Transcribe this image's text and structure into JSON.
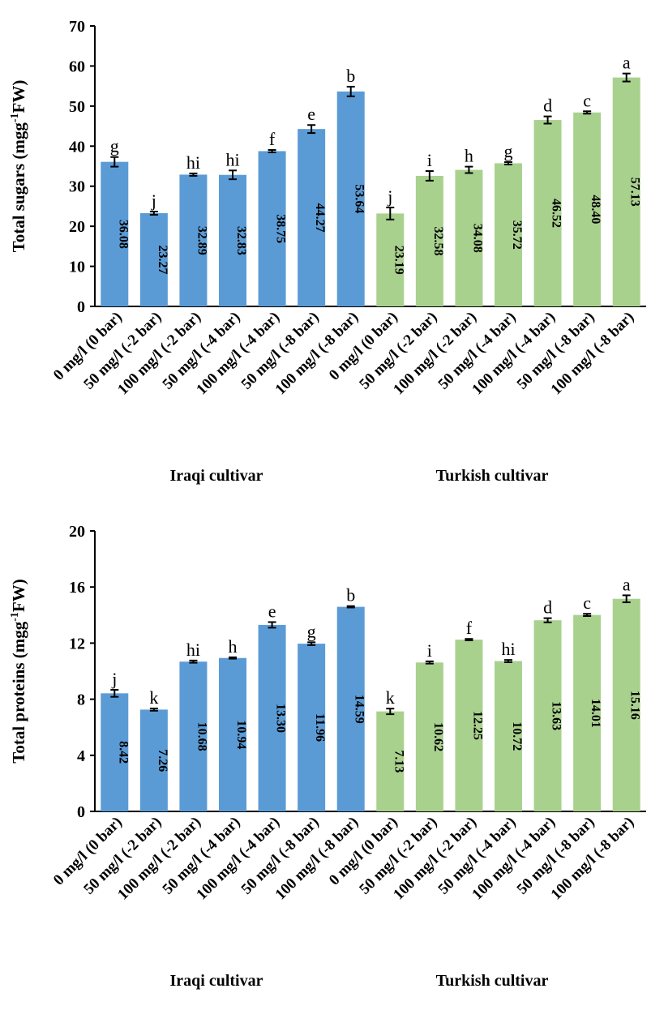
{
  "colors": {
    "iraqi": "#5b9bd5",
    "turkish": "#a9d18e"
  },
  "chart_data": [
    {
      "type": "bar",
      "ylabel_main": "Total sugars (mgg",
      "ylabel_sup": "-1",
      "ylabel_end": "FW)",
      "ylim": [
        0,
        70
      ],
      "yticks": [
        "0",
        "10",
        "20",
        "30",
        "40",
        "50",
        "60",
        "70"
      ],
      "categories": [
        "0 mg/l (0 bar)",
        "50 mg/l (-2 bar)",
        "100 mg/l (-2 bar)",
        "50 mg/l (-4 bar)",
        "100 mg/l (-4 bar)",
        "50 mg/l (-8 bar)",
        "100 mg/l (-8 bar)",
        "0 mg/l (0 bar)",
        "50 mg/l (-2 bar)",
        "100 mg/l (-2 bar)",
        "50 mg/l (-4 bar)",
        "100 mg/l (-4 bar)",
        "50 mg/l (-8 bar)",
        "100 mg/l (-8 bar)"
      ],
      "values": [
        36.08,
        23.27,
        32.89,
        32.83,
        38.75,
        44.27,
        53.64,
        23.19,
        32.58,
        34.08,
        35.72,
        46.52,
        48.4,
        57.13
      ],
      "value_labels": [
        "36.08",
        "23.27",
        "32.89",
        "32.83",
        "38.75",
        "44.27",
        "53.64",
        "23.19",
        "32.58",
        "34.08",
        "35.72",
        "46.52",
        "48.40",
        "57.13"
      ],
      "errors": [
        1.2,
        0.4,
        0.3,
        1.1,
        0.3,
        1.0,
        1.2,
        1.5,
        1.2,
        0.8,
        0.3,
        0.9,
        0.3,
        1.0
      ],
      "letters": [
        "g",
        "j",
        "hi",
        "hi",
        "f",
        "e",
        "b",
        "j",
        "i",
        "h",
        "g",
        "d",
        "c",
        "a"
      ],
      "groups": [
        {
          "label": "Iraqi cultivar",
          "start": 0,
          "end": 6
        },
        {
          "label": "Turkish cultivar",
          "start": 7,
          "end": 13
        }
      ]
    },
    {
      "type": "bar",
      "ylabel_main": "Total proteins (mgg",
      "ylabel_sup": "-1",
      "ylabel_end": "FW)",
      "ylim": [
        0,
        20
      ],
      "yticks": [
        "0",
        "4",
        "8",
        "12",
        "16",
        "20"
      ],
      "categories": [
        "0 mg/l (0 bar)",
        "50 mg/l (-2 bar)",
        "100 mg/l (-2 bar)",
        "50 mg/l (-4 bar)",
        "100 mg/l (-4 bar)",
        "50 mg/l (-8 bar)",
        "100 mg/l (-8 bar)",
        "0 mg/l (0 bar)",
        "50 mg/l (-2 bar)",
        "100 mg/l (-2 bar)",
        "50 mg/l (-4 bar)",
        "100 mg/l (-4 bar)",
        "50 mg/l (-8 bar)",
        "100 mg/l (-8 bar)"
      ],
      "values": [
        8.42,
        7.26,
        10.68,
        10.94,
        13.3,
        11.96,
        14.59,
        7.13,
        10.62,
        12.25,
        10.72,
        13.63,
        14.01,
        15.16
      ],
      "value_labels": [
        "8.42",
        "7.26",
        "10.68",
        "10.94",
        "13.30",
        "11.96",
        "14.59",
        "7.13",
        "10.62",
        "12.25",
        "10.72",
        "13.63",
        "14.01",
        "15.16"
      ],
      "errors": [
        0.25,
        0.08,
        0.08,
        0.05,
        0.2,
        0.1,
        0.05,
        0.2,
        0.08,
        0.05,
        0.08,
        0.15,
        0.08,
        0.25
      ],
      "letters": [
        "j",
        "k",
        "hi",
        "h",
        "e",
        "g",
        "b",
        "k",
        "i",
        "f",
        "hi",
        "d",
        "c",
        "a"
      ],
      "groups": [
        {
          "label": "Iraqi cultivar",
          "start": 0,
          "end": 6
        },
        {
          "label": "Turkish cultivar",
          "start": 7,
          "end": 13
        }
      ]
    }
  ]
}
